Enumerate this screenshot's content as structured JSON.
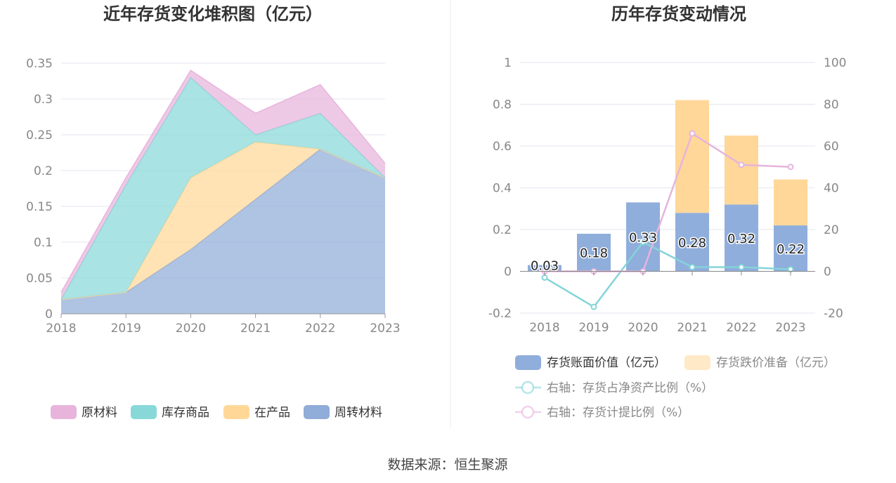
{
  "source": "数据来源：恒生聚源",
  "colors": {
    "raw": "#e8b4dc",
    "goods": "#88d8d8",
    "wip": "#ffd898",
    "turnover": "#90acd8",
    "book": "#8faedc",
    "provision": "#ffd799",
    "netAssetLine": "#84d4d8",
    "provisionLine": "#e6b4dc"
  },
  "chart_data": [
    {
      "type": "area",
      "stacked": true,
      "title": "近年存货变化堆积图（亿元）",
      "x": [
        "2018",
        "2019",
        "2020",
        "2021",
        "2022",
        "2023"
      ],
      "ylim": [
        0,
        0.35
      ],
      "yticks": [
        "0",
        "0.05",
        "0.1",
        "0.15",
        "0.2",
        "0.25",
        "0.3",
        "0.35"
      ],
      "grid": true,
      "legend_position": "bottom",
      "series": [
        {
          "name": "周转材料",
          "values": [
            0.02,
            0.03,
            0.09,
            0.16,
            0.23,
            0.19
          ]
        },
        {
          "name": "在产品",
          "values": [
            0.0,
            0.0,
            0.1,
            0.08,
            0.0,
            0.0
          ]
        },
        {
          "name": "库存商品",
          "values": [
            0.0,
            0.15,
            0.14,
            0.01,
            0.05,
            0.0
          ]
        },
        {
          "name": "原材料",
          "values": [
            0.01,
            0.01,
            0.01,
            0.03,
            0.04,
            0.02
          ]
        }
      ],
      "legend": [
        "原材料",
        "库存商品",
        "在产品",
        "周转材料"
      ]
    },
    {
      "type": "bar",
      "stacked": true,
      "title": "历年存货变动情况",
      "categories": [
        "2018",
        "2019",
        "2020",
        "2021",
        "2022",
        "2023"
      ],
      "ylim": [
        -0.2,
        1
      ],
      "yticks": [
        "-0.2",
        "0",
        "0.2",
        "0.4",
        "0.6",
        "0.8",
        "1"
      ],
      "y2lim": [
        -20,
        100
      ],
      "y2ticks": [
        "-20",
        "0",
        "20",
        "40",
        "60",
        "80",
        "100"
      ],
      "grid": true,
      "legend_position": "bottom",
      "series": [
        {
          "name": "存货账面价值（亿元）",
          "values": [
            0.03,
            0.18,
            0.33,
            0.28,
            0.32,
            0.22
          ],
          "labels": [
            "0.03",
            "0.18",
            "0.33",
            "0.28",
            "0.32",
            "0.22"
          ]
        },
        {
          "name": "存货跌价准备（亿元）",
          "values": [
            0,
            0,
            0,
            0.54,
            0.33,
            0.22
          ]
        }
      ],
      "lines": [
        {
          "name": "右轴：存货占净资产比例（%）",
          "axis": "right",
          "values": [
            -3,
            -17,
            14,
            2,
            2,
            1
          ]
        },
        {
          "name": "右轴：存货计提比例（%）",
          "axis": "right",
          "values": [
            0,
            0,
            0,
            66,
            51,
            50
          ]
        }
      ]
    }
  ]
}
